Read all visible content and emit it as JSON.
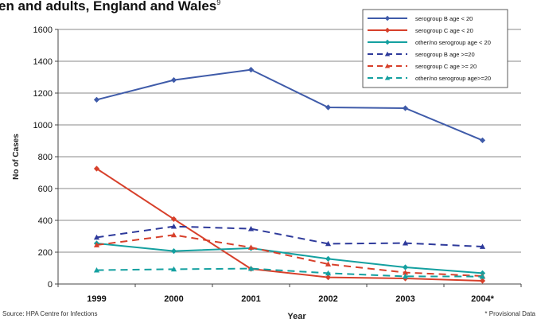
{
  "title": {
    "text": "en and adults, England and Wales",
    "footnote": "9"
  },
  "chart_data": {
    "type": "line",
    "xlabel": "Year",
    "ylabel": "No of Cases",
    "categories": [
      "1999",
      "2000",
      "2001",
      "2002",
      "2003",
      "2004*"
    ],
    "yticks": [
      "0",
      "200",
      "400",
      "600",
      "800",
      "1000",
      "1200",
      "1400",
      "1600"
    ],
    "ylim": [
      0,
      1600
    ],
    "grid": true,
    "legend_position": "top-right",
    "series": [
      {
        "name": "serogroup B age < 20",
        "values": [
          1158,
          1282,
          1347,
          1110,
          1105,
          903
        ],
        "color": "#3f5ba9",
        "dash": "solid",
        "marker": "diamond"
      },
      {
        "name": "serogroup C age < 20",
        "values": [
          725,
          408,
          95,
          42,
          35,
          20
        ],
        "color": "#d7402b",
        "dash": "solid",
        "marker": "diamond"
      },
      {
        "name": "other/no serogroup age < 20",
        "values": [
          255,
          207,
          225,
          158,
          105,
          68
        ],
        "color": "#14a0a0",
        "dash": "solid",
        "marker": "diamond"
      },
      {
        "name": "serogroup B age >=20",
        "values": [
          293,
          362,
          347,
          253,
          257,
          235
        ],
        "color": "#2e3a9b",
        "dash": "dashed",
        "marker": "triangle"
      },
      {
        "name": "serogroup C age >= 20",
        "values": [
          245,
          308,
          230,
          125,
          72,
          50
        ],
        "color": "#d7402b",
        "dash": "dashed",
        "marker": "triangle"
      },
      {
        "name": "other/no serogroup age>=20",
        "values": [
          87,
          93,
          97,
          68,
          48,
          47
        ],
        "color": "#14a0a0",
        "dash": "dashed",
        "marker": "triangle"
      }
    ]
  },
  "source": "Source: HPA Centre for Infections",
  "note": "* Provisional Data"
}
